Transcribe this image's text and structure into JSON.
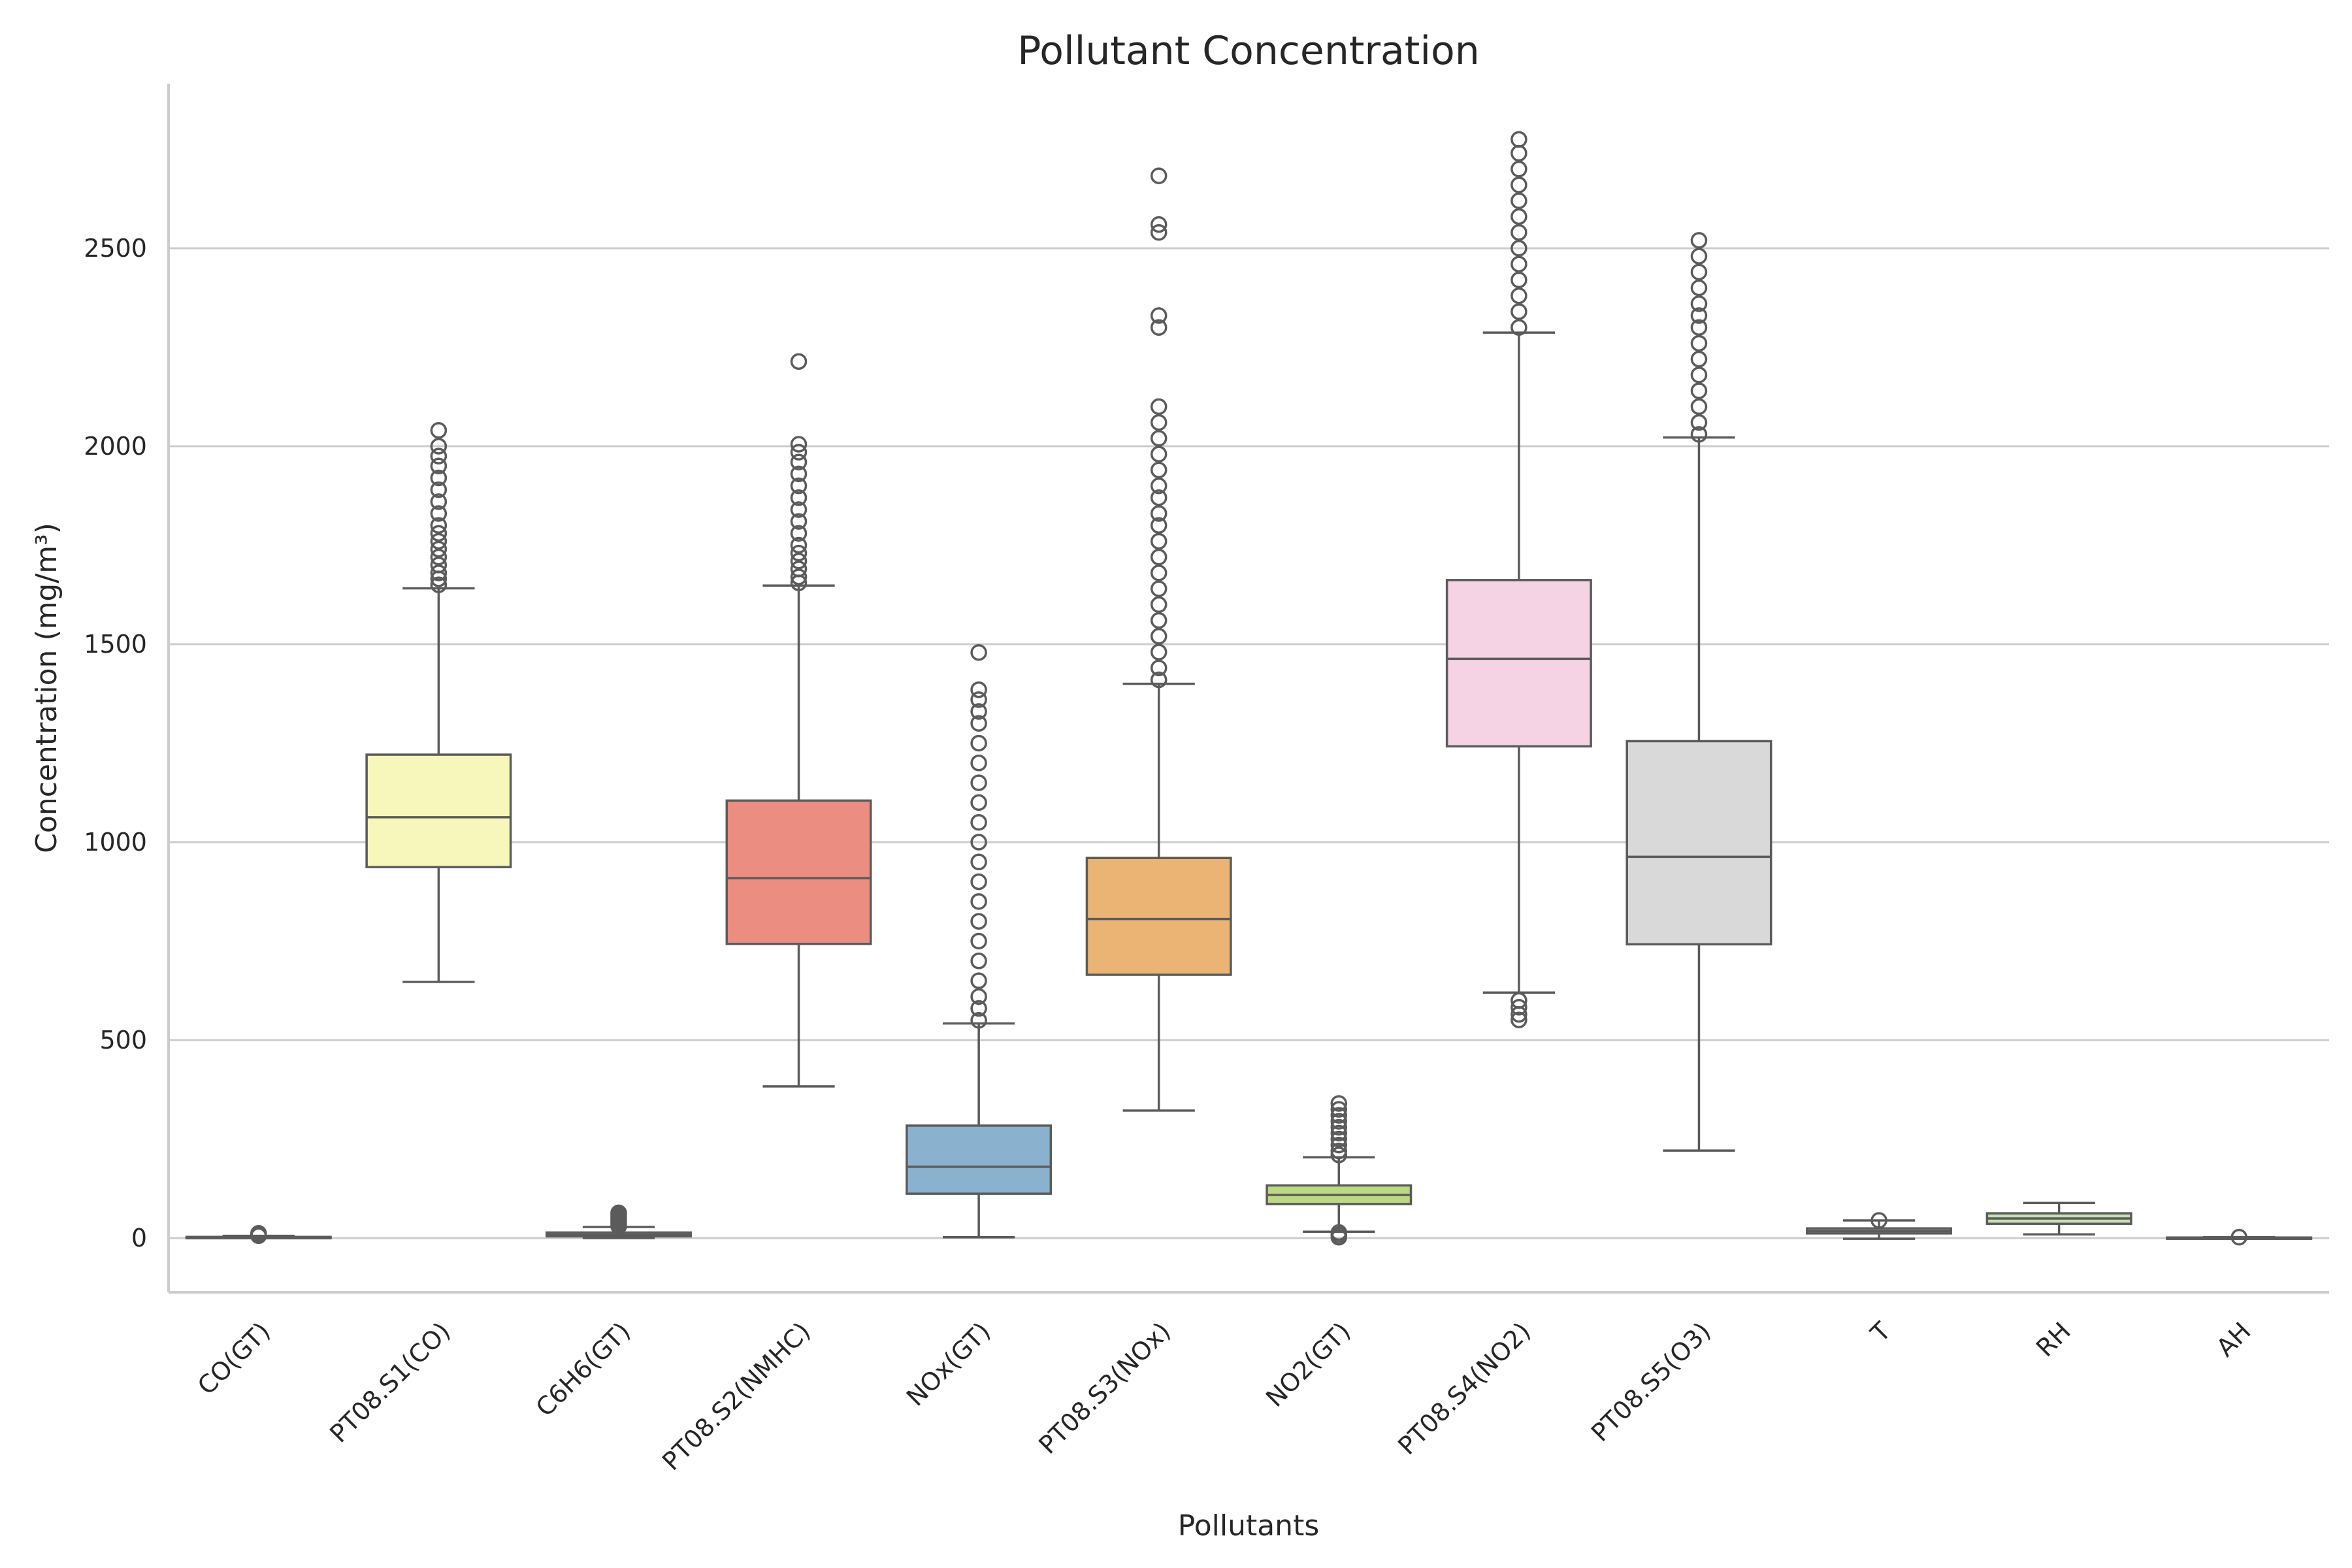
{
  "chart_data": {
    "type": "box",
    "title": "Pollutant Concentration",
    "xlabel": "Pollutants",
    "ylabel": "Concentration (mg/m³)",
    "ylim": [
      -140,
      2900
    ],
    "yticks": [
      0,
      500,
      1000,
      1500,
      2000,
      2500
    ],
    "grid": "horizontal",
    "categories": [
      "CO(GT)",
      "PT08.S1(CO)",
      "C6H6(GT)",
      "PT08.S2(NMHC)",
      "NOx(GT)",
      "PT08.S3(NOx)",
      "NO2(GT)",
      "PT08.S4(NO2)",
      "PT08.S5(O3)",
      "T",
      "RH",
      "AH"
    ],
    "boxes": [
      {
        "name": "CO(GT)",
        "color": "#8dd3c7",
        "whislo": 0.1,
        "q1": 1.1,
        "median": 1.8,
        "q3": 2.9,
        "whishi": 5.6,
        "outliers": [
          6,
          7,
          8,
          9,
          10,
          11.9
        ]
      },
      {
        "name": "PT08.S1(CO)",
        "color": "#f7f6bb",
        "whislo": 647,
        "q1": 937,
        "median": 1063,
        "q3": 1221,
        "whishi": 1641,
        "outliers": [
          1650,
          1665,
          1680,
          1700,
          1720,
          1740,
          1760,
          1780,
          1800,
          1830,
          1860,
          1890,
          1920,
          1950,
          1975,
          2000,
          2040
        ]
      },
      {
        "name": "C6H6(GT)",
        "color": "#bebada",
        "whislo": 0.1,
        "q1": 4.4,
        "median": 8.2,
        "q3": 14.0,
        "whishi": 28.0,
        "outliers": [
          30,
          35,
          40,
          45,
          50,
          55,
          60,
          63.7
        ]
      },
      {
        "name": "PT08.S2(NMHC)",
        "color": "#eb8d81",
        "whislo": 383,
        "q1": 743,
        "median": 909,
        "q3": 1105,
        "whishi": 1648,
        "outliers": [
          1655,
          1670,
          1690,
          1710,
          1730,
          1750,
          1780,
          1810,
          1840,
          1870,
          1900,
          1930,
          1960,
          1985,
          2005,
          2214
        ]
      },
      {
        "name": "NOx(GT)",
        "color": "#8ab1cd",
        "whislo": 2,
        "q1": 112,
        "median": 180,
        "q3": 284,
        "whishi": 542,
        "outliers": [
          550,
          580,
          610,
          650,
          700,
          750,
          800,
          850,
          900,
          950,
          1000,
          1050,
          1100,
          1150,
          1200,
          1250,
          1300,
          1330,
          1360,
          1385,
          1479
        ]
      },
      {
        "name": "PT08.S3(NOx)",
        "color": "#ebb474",
        "whislo": 322,
        "q1": 665,
        "median": 806,
        "q3": 960,
        "whishi": 1400,
        "outliers": [
          1410,
          1440,
          1480,
          1520,
          1560,
          1600,
          1640,
          1680,
          1720,
          1760,
          1800,
          1830,
          1870,
          1900,
          1940,
          1980,
          2020,
          2060,
          2100,
          2300,
          2330,
          2540,
          2560,
          2683
        ]
      },
      {
        "name": "NO2(GT)",
        "color": "#bcd883",
        "whislo": 16,
        "q1": 86,
        "median": 109,
        "q3": 133,
        "whishi": 204,
        "outliers": [
          2,
          8,
          14,
          210,
          220,
          235,
          250,
          265,
          280,
          295,
          310,
          325,
          340
        ]
      },
      {
        "name": "PT08.S4(NO2)",
        "color": "#f5d2e4",
        "whislo": 620,
        "q1": 1242,
        "median": 1463,
        "q3": 1662,
        "whishi": 2287,
        "outliers": [
          551,
          565,
          583,
          600,
          2300,
          2340,
          2380,
          2420,
          2460,
          2500,
          2540,
          2580,
          2620,
          2660,
          2700,
          2740,
          2775
        ]
      },
      {
        "name": "PT08.S5(O3)",
        "color": "#d9d9d9",
        "whislo": 221,
        "q1": 742,
        "median": 963,
        "q3": 1255,
        "whishi": 2022,
        "outliers": [
          2030,
          2060,
          2100,
          2140,
          2180,
          2220,
          2260,
          2300,
          2330,
          2360,
          2400,
          2440,
          2480,
          2520
        ]
      },
      {
        "name": "T",
        "color": "#c8aac8",
        "whislo": -1.9,
        "q1": 11.8,
        "median": 17.8,
        "q3": 24.4,
        "whishi": 44.6,
        "outliers": [
          44.6
        ]
      },
      {
        "name": "RH",
        "color": "#c5e0b3",
        "whislo": 9.2,
        "q1": 36.0,
        "median": 49.6,
        "q3": 62.5,
        "whishi": 88.7,
        "outliers": []
      },
      {
        "name": "AH",
        "color": "#f6ef9f",
        "whislo": 0.18,
        "q1": 0.74,
        "median": 0.99,
        "q3": 1.31,
        "whishi": 2.18,
        "outliers": [
          2.23
        ]
      }
    ]
  }
}
